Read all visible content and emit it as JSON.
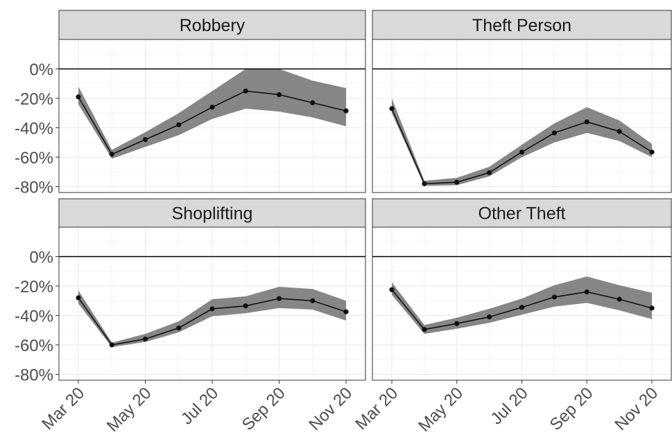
{
  "chart_data": {
    "type": "line",
    "layout": "facet-grid 2x2",
    "x_labels": [
      "Mar 20",
      "May 20",
      "Jul 20",
      "Sep 20",
      "Nov 20"
    ],
    "x": [
      "Mar 20",
      "Apr 20",
      "May 20",
      "Jun 20",
      "Jul 20",
      "Aug 20",
      "Sep 20",
      "Oct 20",
      "Nov 20"
    ],
    "y_ticks": [
      "0%",
      "-20%",
      "-40%",
      "-60%",
      "-80%"
    ],
    "y_tick_values": [
      0,
      -20,
      -40,
      -60,
      -80
    ],
    "ylim": [
      -84,
      20
    ],
    "reference_line": 0,
    "grid": true,
    "colors": {
      "line": "#111111",
      "ribbon": "#7f7f7f",
      "strip": "#d9d9d9",
      "grid": "#ebebeb"
    },
    "panels": [
      {
        "title": "Robbery",
        "values": [
          -19,
          -58,
          -48,
          -38,
          -26,
          -15,
          -17.5,
          -23,
          -28.5
        ],
        "lower": [
          -24,
          -61,
          -53,
          -45,
          -34,
          -27,
          -29,
          -33,
          -39
        ],
        "upper": [
          -12,
          -55,
          -43,
          -30,
          -15,
          0,
          0,
          -8,
          -13
        ]
      },
      {
        "title": "Theft Person",
        "values": [
          -27,
          -78,
          -77,
          -70.5,
          -56.5,
          -43.5,
          -36,
          -42.5,
          -56.5
        ],
        "lower": [
          -30,
          -79.5,
          -79,
          -73,
          -60,
          -50,
          -43.5,
          -49,
          -60
        ],
        "upper": [
          -20,
          -76,
          -74,
          -66.5,
          -51.5,
          -37,
          -26,
          -35,
          -51
        ]
      },
      {
        "title": "Shoplifting",
        "values": [
          -28,
          -60,
          -56,
          -48.5,
          -35.5,
          -33.5,
          -28.5,
          -30,
          -37.5
        ],
        "lower": [
          -32,
          -61.5,
          -58,
          -51.5,
          -40.5,
          -38.5,
          -35,
          -36,
          -43.5
        ],
        "upper": [
          -23,
          -58.5,
          -52.5,
          -44,
          -29,
          -27,
          -20.5,
          -22,
          -30
        ]
      },
      {
        "title": "Other Theft",
        "values": [
          -22.5,
          -49.5,
          -45.5,
          -41,
          -34.5,
          -27.5,
          -24,
          -29,
          -35
        ],
        "lower": [
          -26,
          -52.5,
          -49,
          -45,
          -39.5,
          -34,
          -31.5,
          -36.5,
          -42.5
        ],
        "upper": [
          -17.5,
          -46.5,
          -41.5,
          -35.5,
          -28.5,
          -19.5,
          -13.5,
          -19.5,
          -24.5
        ]
      }
    ]
  }
}
